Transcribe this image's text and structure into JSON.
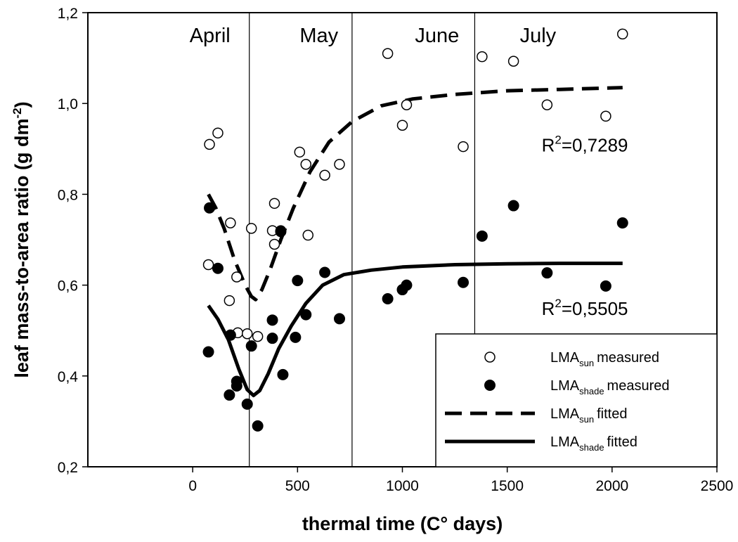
{
  "chart_data": {
    "type": "scatter",
    "xlabel": "thermal time (C° days)",
    "ylabel": {
      "main": "leaf mass-to-area ratio (g dm",
      "sup": "-2",
      "close": ")"
    },
    "xlim": [
      -500,
      2500
    ],
    "ylim": [
      0.2,
      1.2
    ],
    "xticks": [
      0,
      500,
      1000,
      1500,
      2000,
      2500
    ],
    "xtick_labels": [
      "0",
      "500",
      "1000",
      "1500",
      "2000",
      "2500"
    ],
    "yticks": [
      0.2,
      0.4,
      0.6,
      0.8,
      1.0,
      1.2
    ],
    "ytick_labels": [
      "0,2",
      "0,4",
      "0,6",
      "0,8",
      "1,0",
      "1,2"
    ],
    "grid": false,
    "month_boundaries": [
      270,
      760,
      1345
    ],
    "months": [
      {
        "label": "April",
        "x": -15
      },
      {
        "label": "May",
        "x": 510
      },
      {
        "label": "June",
        "x": 1060
      },
      {
        "label": "July",
        "x": 1560
      }
    ],
    "annotations": [
      {
        "id": "sun",
        "base": "R",
        "sup": "2",
        "rest": "=0,7289",
        "x": 1870,
        "y": 0.91
      },
      {
        "id": "shade",
        "base": "R",
        "sup": "2",
        "rest": "=0,5505",
        "x": 1870,
        "y": 0.55
      }
    ],
    "legend": {
      "position": "bottom-right",
      "entries": [
        {
          "marker": "open-circle",
          "base": "LMA",
          "sub": "sun",
          "text": "measured"
        },
        {
          "marker": "filled-circle",
          "base": "LMA",
          "sub": "shade",
          "text": "measured"
        },
        {
          "marker": "dashed-line",
          "base": "LMA",
          "sub": "sun",
          "text": "fitted"
        },
        {
          "marker": "solid-line",
          "base": "LMA",
          "sub": "shade",
          "text": "fitted"
        }
      ]
    },
    "series": [
      {
        "id": "sun-measured",
        "marker": "open-circle",
        "points": [
          [
            80,
            0.91
          ],
          [
            120,
            0.935
          ],
          [
            75,
            0.645
          ],
          [
            180,
            0.737
          ],
          [
            175,
            0.566
          ],
          [
            210,
            0.618
          ],
          [
            215,
            0.495
          ],
          [
            260,
            0.493
          ],
          [
            280,
            0.725
          ],
          [
            310,
            0.487
          ],
          [
            380,
            0.72
          ],
          [
            390,
            0.69
          ],
          [
            420,
            0.72
          ],
          [
            390,
            0.78
          ],
          [
            510,
            0.893
          ],
          [
            540,
            0.866
          ],
          [
            550,
            0.71
          ],
          [
            630,
            0.842
          ],
          [
            700,
            0.866
          ],
          [
            930,
            1.11
          ],
          [
            1000,
            0.952
          ],
          [
            1020,
            0.997
          ],
          [
            1290,
            0.905
          ],
          [
            1380,
            1.103
          ],
          [
            1530,
            1.093
          ],
          [
            1690,
            0.997
          ],
          [
            1970,
            0.972
          ],
          [
            2050,
            1.153
          ]
        ]
      },
      {
        "id": "shade-measured",
        "marker": "filled-circle",
        "points": [
          [
            80,
            0.77
          ],
          [
            120,
            0.637
          ],
          [
            75,
            0.453
          ],
          [
            180,
            0.49
          ],
          [
            175,
            0.358
          ],
          [
            210,
            0.388
          ],
          [
            210,
            0.378
          ],
          [
            260,
            0.338
          ],
          [
            280,
            0.466
          ],
          [
            310,
            0.29
          ],
          [
            380,
            0.523
          ],
          [
            380,
            0.483
          ],
          [
            420,
            0.718
          ],
          [
            430,
            0.403
          ],
          [
            500,
            0.61
          ],
          [
            490,
            0.485
          ],
          [
            540,
            0.535
          ],
          [
            630,
            0.628
          ],
          [
            700,
            0.526
          ],
          [
            930,
            0.57
          ],
          [
            1000,
            0.59
          ],
          [
            1020,
            0.6
          ],
          [
            1290,
            0.606
          ],
          [
            1380,
            0.708
          ],
          [
            1530,
            0.775
          ],
          [
            1690,
            0.627
          ],
          [
            1970,
            0.598
          ],
          [
            2050,
            0.737
          ]
        ]
      },
      {
        "id": "sun-fitted",
        "style": "dashed",
        "points": [
          [
            75,
            0.8
          ],
          [
            110,
            0.77
          ],
          [
            150,
            0.725
          ],
          [
            200,
            0.655
          ],
          [
            250,
            0.6
          ],
          [
            280,
            0.575
          ],
          [
            300,
            0.568
          ],
          [
            330,
            0.59
          ],
          [
            370,
            0.635
          ],
          [
            420,
            0.7
          ],
          [
            480,
            0.77
          ],
          [
            560,
            0.85
          ],
          [
            650,
            0.915
          ],
          [
            760,
            0.96
          ],
          [
            900,
            0.995
          ],
          [
            1050,
            1.01
          ],
          [
            1250,
            1.02
          ],
          [
            1500,
            1.028
          ],
          [
            1750,
            1.031
          ],
          [
            2050,
            1.035
          ]
        ]
      },
      {
        "id": "shade-fitted",
        "style": "solid",
        "points": [
          [
            75,
            0.555
          ],
          [
            120,
            0.525
          ],
          [
            170,
            0.48
          ],
          [
            220,
            0.415
          ],
          [
            260,
            0.37
          ],
          [
            290,
            0.357
          ],
          [
            320,
            0.368
          ],
          [
            360,
            0.405
          ],
          [
            410,
            0.46
          ],
          [
            470,
            0.51
          ],
          [
            540,
            0.56
          ],
          [
            620,
            0.6
          ],
          [
            720,
            0.623
          ],
          [
            850,
            0.633
          ],
          [
            1000,
            0.64
          ],
          [
            1250,
            0.645
          ],
          [
            1500,
            0.647
          ],
          [
            1750,
            0.648
          ],
          [
            2050,
            0.648
          ]
        ]
      }
    ]
  }
}
